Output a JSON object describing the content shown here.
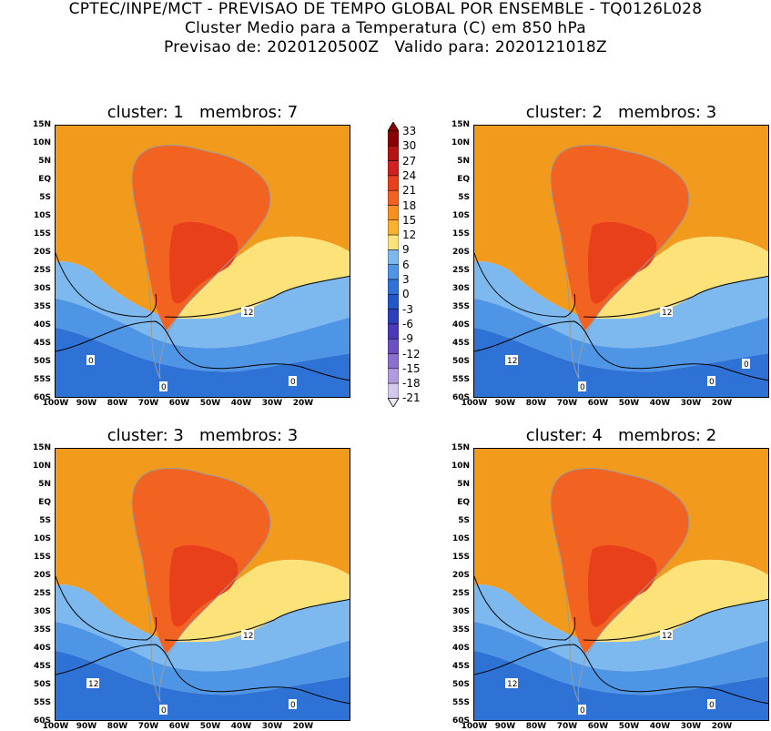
{
  "header": {
    "line1": "CPTEC/INPE/MCT - PREVISAO DE TEMPO GLOBAL POR ENSEMBLE - TQ0126L028",
    "line2": "Cluster Medio para a Temperatura (C) em 850 hPa",
    "line3": "Previsao de: 2020120500Z   Valido para: 2020121018Z"
  },
  "panels": [
    {
      "title": "cluster: 1   membros: 7",
      "contour_labels": [
        "12",
        "0",
        "0",
        "0"
      ]
    },
    {
      "title": "cluster: 2   membros: 3",
      "contour_labels": [
        "12",
        "12",
        "0",
        "0",
        "0"
      ]
    },
    {
      "title": "cluster: 3   membros: 3",
      "contour_labels": [
        "12",
        "12",
        "0",
        "0"
      ]
    },
    {
      "title": "cluster: 4   membros: 2",
      "contour_labels": [
        "12",
        "12",
        "0",
        "0"
      ]
    }
  ],
  "lat_ticks": [
    "15N",
    "10N",
    "5N",
    "EQ",
    "5S",
    "10S",
    "15S",
    "20S",
    "25S",
    "30S",
    "35S",
    "40S",
    "45S",
    "50S",
    "55S",
    "60S"
  ],
  "lon_ticks": [
    "100W",
    "90W",
    "80W",
    "70W",
    "60W",
    "50W",
    "40W",
    "30W",
    "20W"
  ],
  "colorbar": {
    "labels": [
      "33",
      "30",
      "27",
      "24",
      "21",
      "18",
      "15",
      "12",
      "9",
      "6",
      "3",
      "0",
      "-3",
      "-6",
      "-9",
      "-12",
      "-15",
      "-18",
      "-21"
    ],
    "colors": [
      "#8b0000",
      "#b41414",
      "#d32020",
      "#e8401a",
      "#f26322",
      "#f7901e",
      "#fbb02e",
      "#fde27a",
      "#7db8ee",
      "#4f95e6",
      "#2f72d6",
      "#2257c8",
      "#2e3fbb",
      "#4a3ab8",
      "#6a50c2",
      "#8a6ed0",
      "#b09ae0",
      "#d4c8ef"
    ]
  }
}
